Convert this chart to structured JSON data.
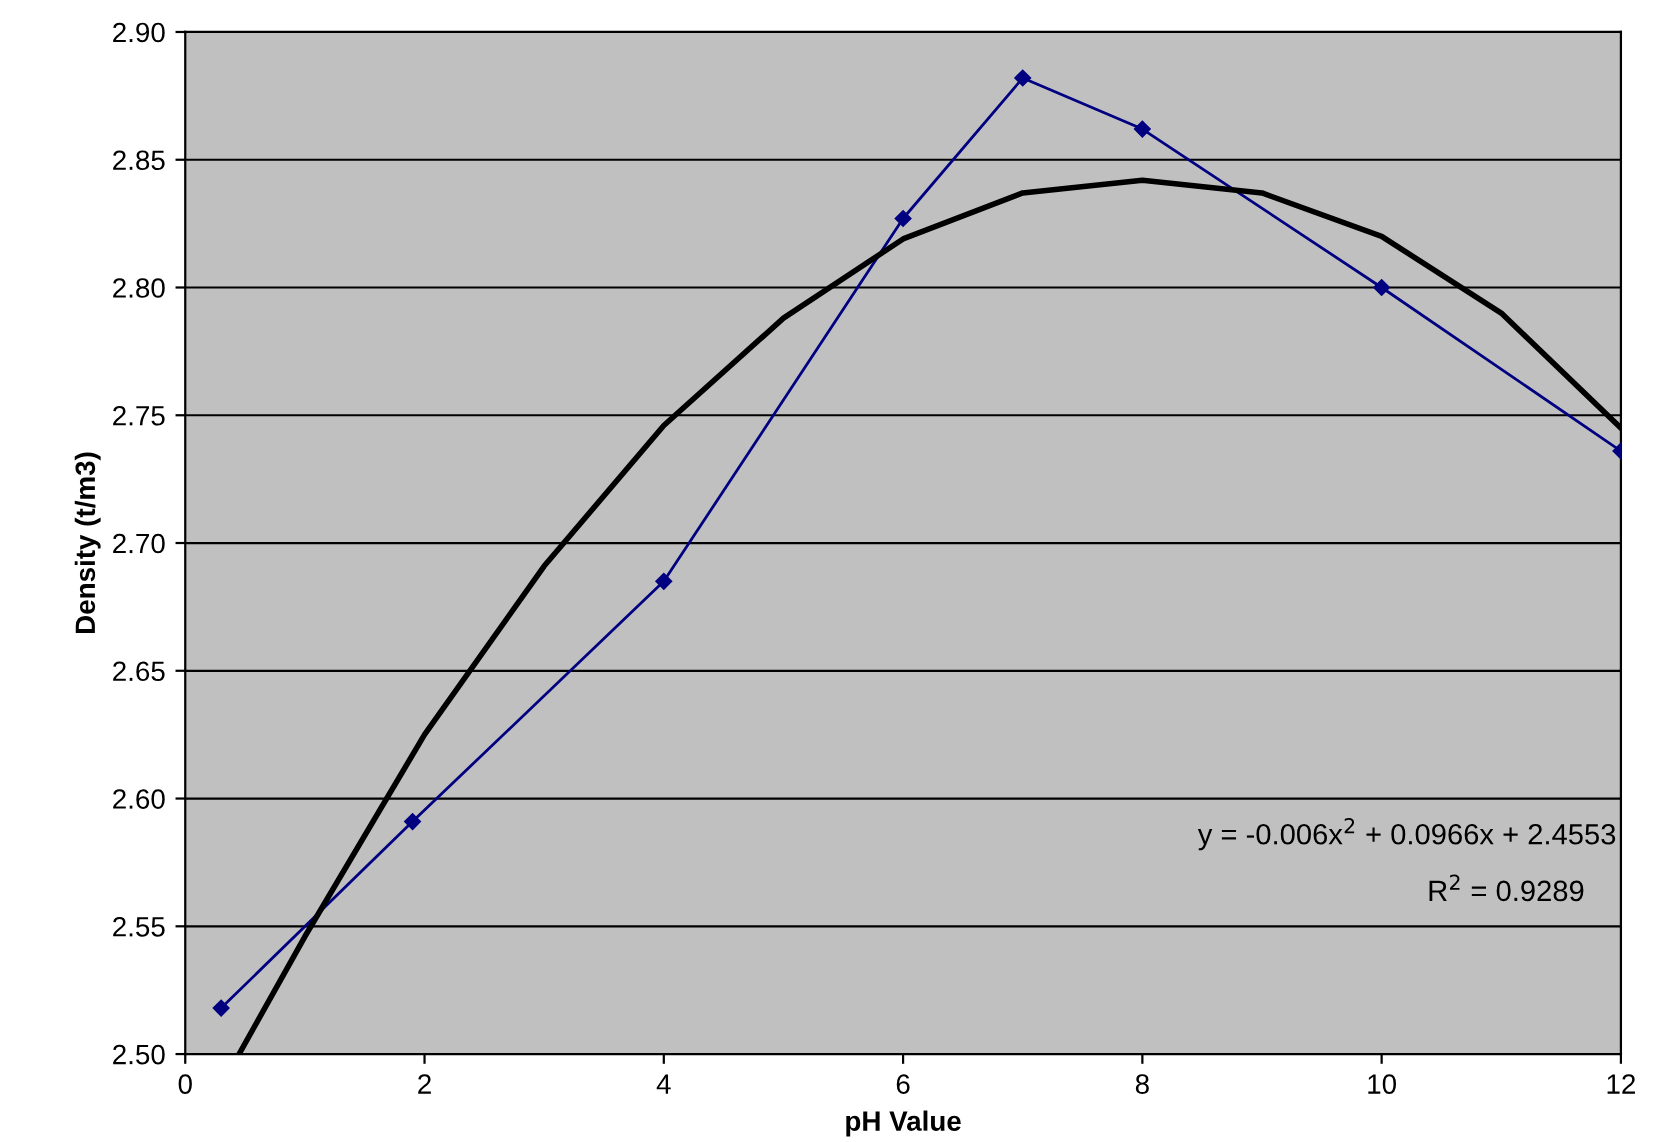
{
  "chart_data": {
    "type": "line",
    "xlabel": "pH Value",
    "ylabel": "Density (t/m3)",
    "xlim": [
      0,
      12
    ],
    "xticks": [
      0,
      2,
      4,
      6,
      8,
      10,
      12
    ],
    "ylim": [
      2.5,
      2.9
    ],
    "yticks": [
      {
        "value": 2.5,
        "label": "2.50"
      },
      {
        "value": 2.55,
        "label": "2.55"
      },
      {
        "value": 2.6,
        "label": "2.60"
      },
      {
        "value": 2.65,
        "label": "2.65"
      },
      {
        "value": 2.7,
        "label": "2.70"
      },
      {
        "value": 2.75,
        "label": "2.75"
      },
      {
        "value": 2.8,
        "label": "2.80"
      },
      {
        "value": 2.85,
        "label": "2.85"
      },
      {
        "value": 2.9,
        "label": "2.90"
      }
    ],
    "grid": "y",
    "legend": false,
    "series": [
      {
        "color": "#000080",
        "marker": "diamond",
        "x": [
          0.3,
          1.9,
          4,
          6,
          7,
          8,
          10,
          12
        ],
        "values": [
          2.518,
          2.591,
          2.685,
          2.827,
          2.882,
          2.862,
          2.8,
          2.736
        ]
      },
      {
        "color": "#000000",
        "marker": "none",
        "x": [
          0.45,
          1,
          2,
          3,
          4,
          5,
          6,
          7,
          8,
          9,
          10,
          11,
          12
        ],
        "values": [
          2.5,
          2.546,
          2.625,
          2.691,
          2.746,
          2.788,
          2.819,
          2.837,
          2.842,
          2.837,
          2.82,
          2.79,
          2.745
        ]
      }
    ],
    "annotations": [
      "y = -0.006x$^{2}$ + 0.0966x + 2.4553",
      "R$^{2}$ = 0.9289"
    ]
  }
}
